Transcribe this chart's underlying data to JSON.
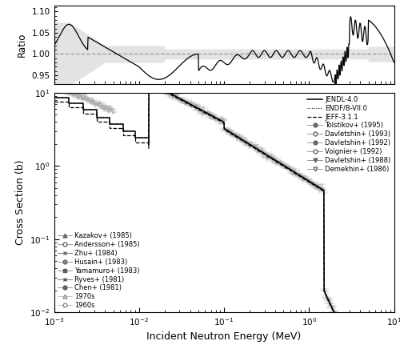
{
  "xlabel": "Incident Neutron Energy (MeV)",
  "ylabel_upper": "Ratio",
  "ylabel_lower": "Cross Section (b)",
  "background_color": "#ffffff",
  "line_color": "#000000",
  "shade_color": "#cccccc",
  "dashed_color": "#999999",
  "legend_entries_right": [
    "JENDL-4.0",
    "ENDF/B-VII.0",
    "JEFF-3.1.1",
    "Tolstikov+ (1995)",
    "Davletshin+ (1993)",
    "Davletshin+ (1992)",
    "Voignier+ (1992)",
    "Davletshin+ (1988)",
    "Demekhin+ (1986)"
  ],
  "legend_entries_left": [
    "Kazakov+ (1985)",
    "Andersson+ (1985)",
    "Zhu+ (1984)",
    "Husain+ (1983)",
    "Yamamuro+ (1983)",
    "Ryves+ (1981)",
    "Chen+ (1981)",
    "1970s",
    "1960s"
  ]
}
